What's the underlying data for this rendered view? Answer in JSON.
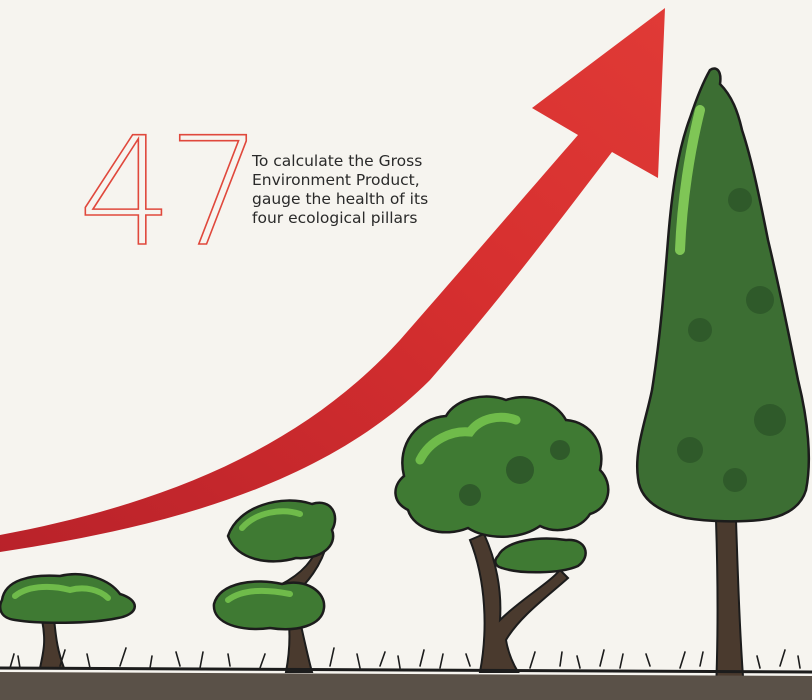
{
  "headline": {
    "number": "47",
    "caption": "To calculate the Gross Environment Product, gauge the health of its four ecological pillars"
  },
  "illustration": {
    "arrow_color": "#d62f2f",
    "number_color": "#e0483c",
    "tree_colors": [
      "#3f7a33",
      "#5aa33c",
      "#2f5a2a"
    ],
    "trunk_color": "#4a3a2e",
    "ground_color": "#5a5148"
  }
}
